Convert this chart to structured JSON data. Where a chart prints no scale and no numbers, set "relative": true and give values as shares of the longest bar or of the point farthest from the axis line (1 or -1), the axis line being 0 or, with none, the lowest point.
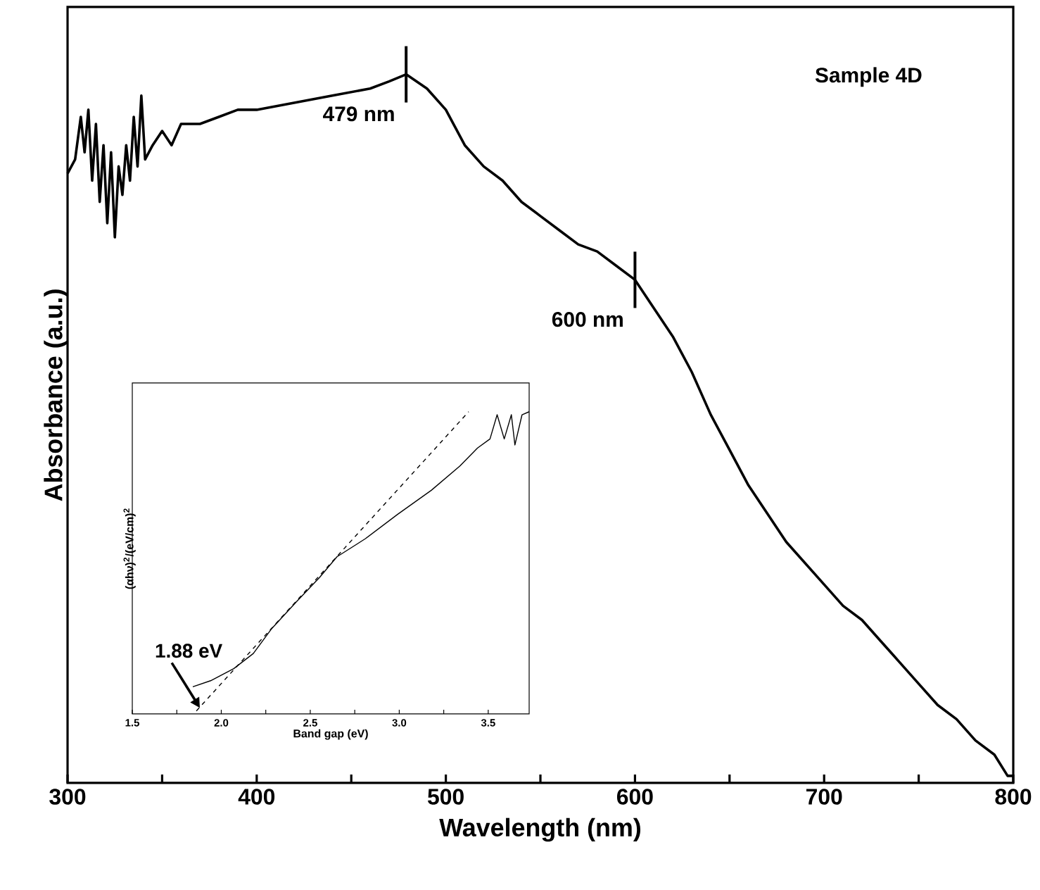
{
  "chart_data": [
    {
      "type": "line",
      "xlabel": "Wavelength (nm)",
      "ylabel": "Absorbance (a.u.)",
      "relative": true,
      "tick_labels": "x",
      "xlim": [
        300,
        800
      ],
      "xticks": [
        300,
        {
          "value": 350,
          "label": null
        },
        400,
        {
          "value": 450,
          "label": null
        },
        500,
        {
          "value": 550,
          "label": null
        },
        600,
        {
          "value": 650,
          "label": null
        },
        700,
        {
          "value": 750,
          "label": null
        },
        800
      ],
      "series": [
        {
          "color": "#000000",
          "x": [
            300,
            304,
            307,
            309,
            311,
            313,
            315,
            317,
            319,
            321,
            323,
            325,
            327,
            329,
            331,
            333,
            335,
            337,
            339,
            341,
            345,
            350,
            355,
            360,
            370,
            380,
            390,
            400,
            420,
            440,
            460,
            470,
            479,
            490,
            500,
            510,
            520,
            530,
            540,
            550,
            560,
            570,
            580,
            590,
            600,
            610,
            620,
            630,
            640,
            650,
            660,
            670,
            680,
            690,
            700,
            710,
            720,
            730,
            740,
            750,
            760,
            770,
            780,
            790,
            797,
            800
          ],
          "values": [
            0.86,
            0.88,
            0.94,
            0.89,
            0.95,
            0.85,
            0.93,
            0.82,
            0.9,
            0.79,
            0.89,
            0.77,
            0.87,
            0.83,
            0.9,
            0.85,
            0.94,
            0.87,
            0.97,
            0.88,
            0.9,
            0.92,
            0.9,
            0.93,
            0.93,
            0.94,
            0.95,
            0.95,
            0.96,
            0.97,
            0.98,
            0.99,
            1.0,
            0.98,
            0.95,
            0.9,
            0.87,
            0.85,
            0.82,
            0.8,
            0.78,
            0.76,
            0.75,
            0.73,
            0.71,
            0.67,
            0.63,
            0.58,
            0.52,
            0.47,
            0.42,
            0.38,
            0.34,
            0.31,
            0.28,
            0.25,
            0.23,
            0.2,
            0.17,
            0.14,
            0.11,
            0.09,
            0.06,
            0.04,
            0.01,
            0.01
          ]
        }
      ],
      "annotations": [
        {
          "text": "479 nm",
          "x": 479,
          "y": 1.0
        },
        {
          "text": "600 nm",
          "x": 600,
          "y": 0.71
        },
        "Sample 4D"
      ]
    },
    {
      "type": "line",
      "xlabel": "Band gap (eV)",
      "ylabel": "(αhν)$^{2}$/(eV/cm)$^{2}$",
      "relative": true,
      "tick_labels": "x",
      "xlim": [
        1.5,
        3.73
      ],
      "xticks": [
        1.5,
        {
          "value": 1.75,
          "label": null
        },
        {
          "value": 2.0,
          "label": "2.0"
        },
        {
          "value": 2.25,
          "label": null
        },
        2.5,
        {
          "value": 2.75,
          "label": null
        },
        {
          "value": 3.0,
          "label": "3.0"
        },
        {
          "value": 3.25,
          "label": null
        },
        3.5
      ],
      "series": [
        {
          "color": "#000000",
          "line_style": "solid",
          "x": [
            1.84,
            1.94,
            2.07,
            2.18,
            2.28,
            2.42,
            2.55,
            2.65,
            2.81,
            2.99,
            3.18,
            3.34,
            3.44,
            3.51,
            3.55,
            3.59,
            3.63,
            3.65,
            3.69,
            3.73
          ],
          "values": [
            0.09,
            0.11,
            0.15,
            0.2,
            0.28,
            0.37,
            0.45,
            0.52,
            0.58,
            0.66,
            0.74,
            0.82,
            0.88,
            0.91,
            0.99,
            0.91,
            0.99,
            0.89,
            0.99,
            1.0
          ]
        },
        {
          "color": "#000000",
          "line_style": "dashed",
          "x": [
            1.86,
            3.39
          ],
          "values": [
            0.01,
            1.0
          ]
        }
      ],
      "annotations": [
        {
          "text": "1.88 eV",
          "x": 1.88,
          "y": 0.02
        }
      ]
    }
  ]
}
